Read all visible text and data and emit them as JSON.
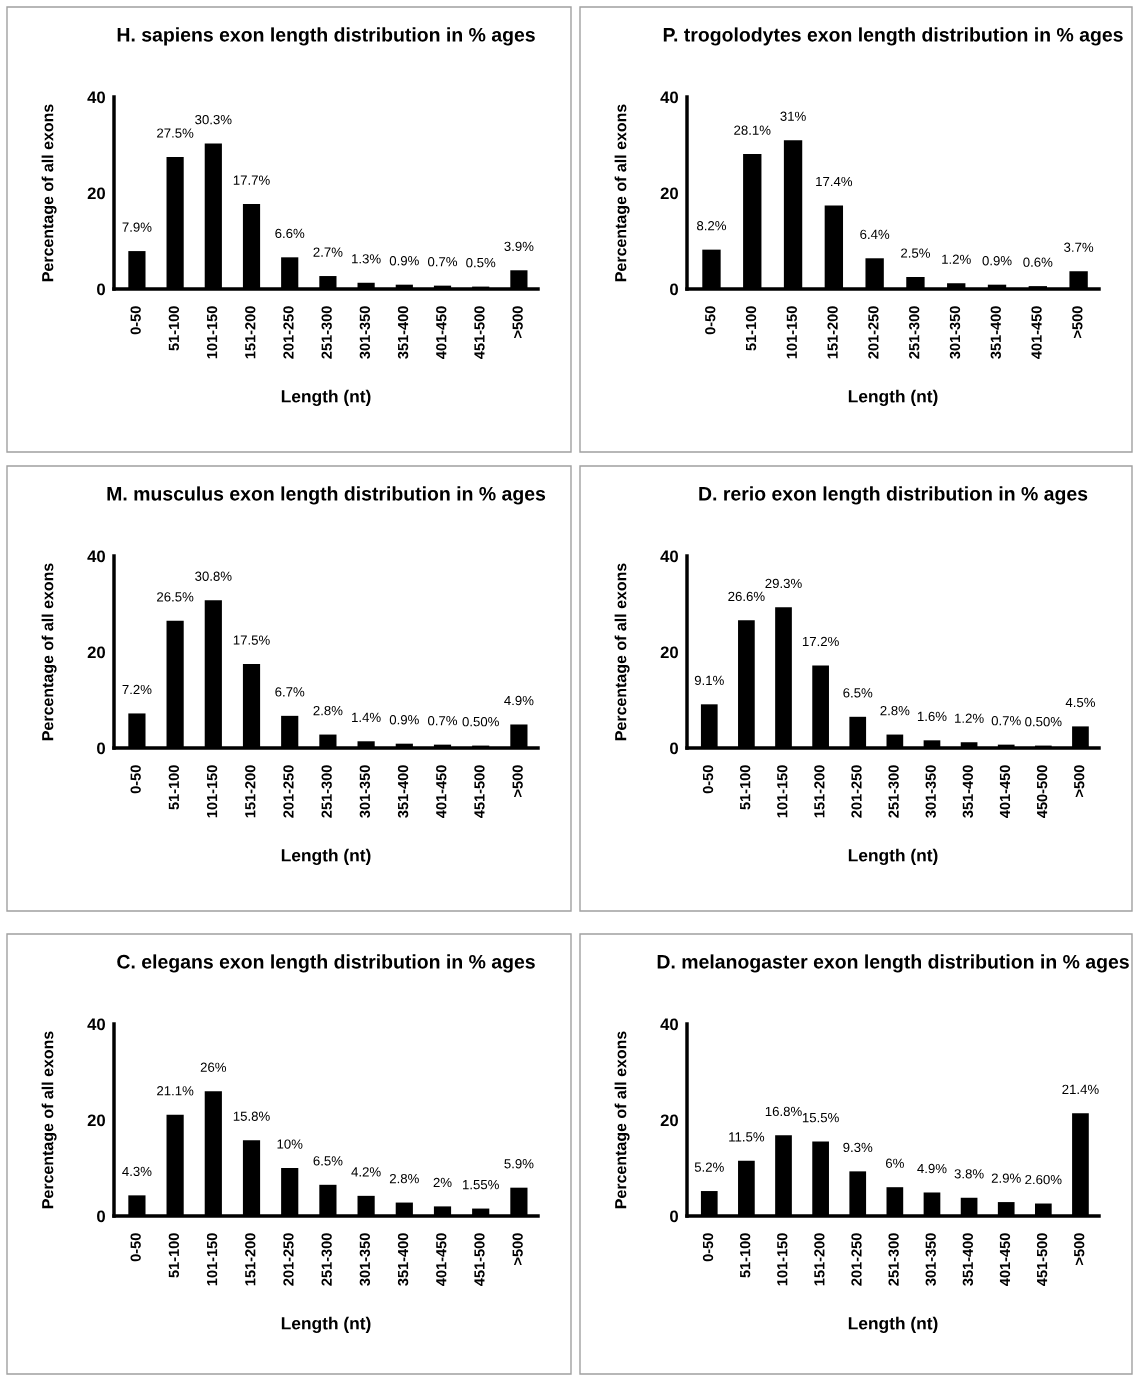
{
  "chart_data": [
    {
      "type": "bar",
      "title": "H. sapiens exon length distribution in % ages",
      "xlabel": "Length (nt)",
      "ylabel": "Percentage of all exons",
      "categories": [
        "0-50",
        "51-100",
        "101-150",
        "151-200",
        "201-250",
        "251-300",
        "301-350",
        "351-400",
        "401-450",
        "451-500",
        ">500"
      ],
      "values": [
        7.9,
        27.5,
        30.3,
        17.7,
        6.6,
        2.7,
        1.3,
        0.9,
        0.7,
        0.5,
        3.9
      ],
      "value_labels": [
        "7.9%",
        "27.5%",
        "30.3%",
        "17.7%",
        "6.6%",
        "2.7%",
        "1.3%",
        "0.9%",
        "0.7%",
        "0.5%",
        "3.9%"
      ],
      "color": "#000000",
      "ylim": [
        0,
        40
      ],
      "yticks": [
        0,
        20,
        40
      ],
      "grid": false,
      "legend": false
    },
    {
      "type": "bar",
      "title": "P. trogolodytes exon length distribution in % ages",
      "xlabel": "Length (nt)",
      "ylabel": "Percentage of all exons",
      "categories": [
        "0-50",
        "51-100",
        "101-150",
        "151-200",
        "201-250",
        "251-300",
        "301-350",
        "351-400",
        "401-450",
        ">500"
      ],
      "values": [
        8.2,
        28.1,
        31,
        17.4,
        6.4,
        2.5,
        1.2,
        0.9,
        0.6,
        3.7
      ],
      "value_labels": [
        "8.2%",
        "28.1%",
        "31%",
        "17.4%",
        "6.4%",
        "2.5%",
        "1.2%",
        "0.9%",
        "0.6%",
        "3.7%"
      ],
      "color": "#000000",
      "ylim": [
        0,
        40
      ],
      "yticks": [
        0,
        20,
        40
      ],
      "grid": false,
      "legend": false
    },
    {
      "type": "bar",
      "title": "M. musculus exon length distribution in % ages",
      "xlabel": "Length (nt)",
      "ylabel": "Percentage of all exons",
      "categories": [
        "0-50",
        "51-100",
        "101-150",
        "151-200",
        "201-250",
        "251-300",
        "301-350",
        "351-400",
        "401-450",
        "451-500",
        ">500"
      ],
      "values": [
        7.2,
        26.5,
        30.8,
        17.5,
        6.7,
        2.8,
        1.4,
        0.9,
        0.7,
        0.5,
        4.9
      ],
      "value_labels": [
        "7.2%",
        "26.5%",
        "30.8%",
        "17.5%",
        "6.7%",
        "2.8%",
        "1.4%",
        "0.9%",
        "0.7%",
        "0.50%",
        "4.9%"
      ],
      "color": "#000000",
      "ylim": [
        0,
        40
      ],
      "yticks": [
        0,
        20,
        40
      ],
      "grid": false,
      "legend": false
    },
    {
      "type": "bar",
      "title": "D. rerio exon length distribution in % ages",
      "xlabel": "Length (nt)",
      "ylabel": "Percentage of all exons",
      "categories": [
        "0-50",
        "51-100",
        "101-150",
        "151-200",
        "201-250",
        "251-300",
        "301-350",
        "351-400",
        "401-450",
        "450-500",
        ">500"
      ],
      "values": [
        9.1,
        26.6,
        29.3,
        17.2,
        6.5,
        2.8,
        1.6,
        1.2,
        0.7,
        0.5,
        4.5
      ],
      "value_labels": [
        "9.1%",
        "26.6%",
        "29.3%",
        "17.2%",
        "6.5%",
        "2.8%",
        "1.6%",
        "1.2%",
        "0.7%",
        "0.50%",
        "4.5%"
      ],
      "color": "#000000",
      "ylim": [
        0,
        40
      ],
      "yticks": [
        0,
        20,
        40
      ],
      "grid": false,
      "legend": false
    },
    {
      "type": "bar",
      "title": "C. elegans exon length distribution in % ages",
      "xlabel": "Length (nt)",
      "ylabel": "Percentage of all exons",
      "categories": [
        "0-50",
        "51-100",
        "101-150",
        "151-200",
        "201-250",
        "251-300",
        "301-350",
        "351-400",
        "401-450",
        "451-500",
        ">500"
      ],
      "values": [
        4.3,
        21.1,
        26,
        15.8,
        10,
        6.5,
        4.2,
        2.8,
        2,
        1.55,
        5.9
      ],
      "value_labels": [
        "4.3%",
        "21.1%",
        "26%",
        "15.8%",
        "10%",
        "6.5%",
        "4.2%",
        "2.8%",
        "2%",
        "1.55%",
        "5.9%"
      ],
      "color": "#000000",
      "ylim": [
        0,
        40
      ],
      "yticks": [
        0,
        20,
        40
      ],
      "grid": false,
      "legend": false
    },
    {
      "type": "bar",
      "title": "D. melanogaster exon length distribution in % ages",
      "xlabel": "Length (nt)",
      "ylabel": "Percentage of all exons",
      "categories": [
        "0-50",
        "51-100",
        "101-150",
        "151-200",
        "201-250",
        "251-300",
        "301-350",
        "351-400",
        "401-450",
        "451-500",
        ">500"
      ],
      "values": [
        5.2,
        11.5,
        16.8,
        15.5,
        9.3,
        6,
        4.9,
        3.8,
        2.9,
        2.6,
        21.4
      ],
      "value_labels": [
        "5.2%",
        "11.5%",
        "16.8%",
        "15.5%",
        "9.3%",
        "6%",
        "4.9%",
        "3.8%",
        "2.9%",
        "2.60%",
        "21.4%"
      ],
      "color": "#000000",
      "ylim": [
        0,
        40
      ],
      "yticks": [
        0,
        20,
        40
      ],
      "grid": false,
      "legend": false
    }
  ]
}
